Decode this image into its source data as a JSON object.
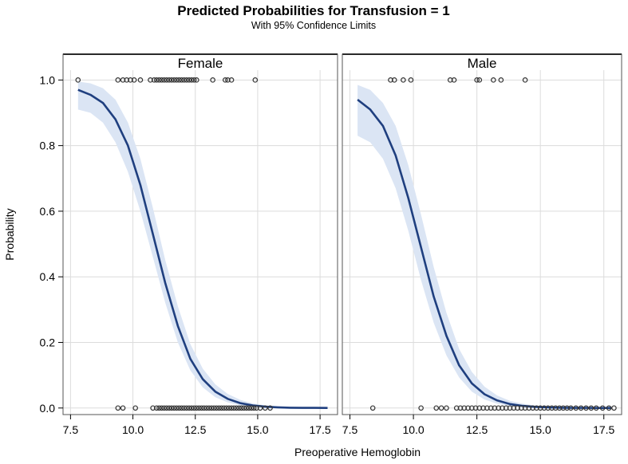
{
  "chart_data": {
    "type": "line",
    "title": "Predicted Probabilities for Transfusion = 1",
    "subtitle": "With 95% Confidence Limits",
    "xlabel": "Preoperative Hemoglobin",
    "ylabel": "Probability",
    "xlim": [
      7.2,
      18.2
    ],
    "ylim": [
      -0.02,
      1.03
    ],
    "xticks": [
      7.5,
      10.0,
      12.5,
      15.0,
      17.5
    ],
    "xtick_labels": [
      "7.5",
      "10.0",
      "12.5",
      "15.0",
      "17.5"
    ],
    "yticks": [
      0.0,
      0.2,
      0.4,
      0.6,
      0.8,
      1.0
    ],
    "ytick_labels": [
      "0.0",
      "0.2",
      "0.4",
      "0.6",
      "0.8",
      "1.0"
    ],
    "grid": true,
    "line_color": "#1f3f7f",
    "band_color": "#dbe5f4",
    "marker_color": "#333333",
    "panels": [
      {
        "label": "Female",
        "curve": {
          "x": [
            7.8,
            8.3,
            8.8,
            9.3,
            9.8,
            10.3,
            10.8,
            11.3,
            11.8,
            12.3,
            12.8,
            13.3,
            13.8,
            14.3,
            14.8,
            15.3,
            15.8,
            16.3,
            16.8,
            17.3,
            17.8
          ],
          "y": [
            0.97,
            0.955,
            0.93,
            0.88,
            0.8,
            0.68,
            0.53,
            0.38,
            0.25,
            0.15,
            0.088,
            0.05,
            0.028,
            0.015,
            0.008,
            0.004,
            0.002,
            0.001,
            0.0005,
            0.0003,
            0.0002
          ],
          "lower": [
            0.91,
            0.9,
            0.87,
            0.81,
            0.72,
            0.6,
            0.46,
            0.32,
            0.2,
            0.115,
            0.063,
            0.033,
            0.017,
            0.008,
            0.004,
            0.002,
            0.001,
            0.0005,
            0.0002,
            0.0001,
            0.0
          ],
          "upper": [
            0.995,
            0.99,
            0.975,
            0.94,
            0.87,
            0.76,
            0.61,
            0.45,
            0.31,
            0.195,
            0.12,
            0.072,
            0.043,
            0.025,
            0.014,
            0.008,
            0.0045,
            0.0025,
            0.0015,
            0.001,
            0.0006
          ]
        },
        "points_y1": [
          7.8,
          9.4,
          9.6,
          9.75,
          9.9,
          10.05,
          10.3,
          10.7,
          10.85,
          10.95,
          11.05,
          11.15,
          11.25,
          11.35,
          11.45,
          11.55,
          11.65,
          11.75,
          11.85,
          11.95,
          12.05,
          12.15,
          12.25,
          12.35,
          12.45,
          12.55,
          13.2,
          13.7,
          13.8,
          13.95,
          14.9
        ],
        "points_y0": [
          9.4,
          9.6,
          10.1,
          10.8,
          10.95,
          11.05,
          11.15,
          11.25,
          11.35,
          11.45,
          11.55,
          11.65,
          11.75,
          11.85,
          11.95,
          12.05,
          12.15,
          12.25,
          12.35,
          12.45,
          12.55,
          12.65,
          12.75,
          12.85,
          12.95,
          13.05,
          13.15,
          13.25,
          13.35,
          13.45,
          13.55,
          13.65,
          13.75,
          13.85,
          13.95,
          14.05,
          14.15,
          14.25,
          14.35,
          14.45,
          14.55,
          14.65,
          14.75,
          14.85,
          14.95,
          15.1,
          15.3,
          15.5
        ]
      },
      {
        "label": "Male",
        "curve": {
          "x": [
            7.8,
            8.3,
            8.8,
            9.3,
            9.8,
            10.3,
            10.8,
            11.3,
            11.8,
            12.3,
            12.8,
            13.3,
            13.8,
            14.3,
            14.8,
            15.3,
            15.8,
            16.3,
            16.8,
            17.3,
            17.8
          ],
          "y": [
            0.94,
            0.91,
            0.86,
            0.77,
            0.64,
            0.49,
            0.34,
            0.22,
            0.13,
            0.075,
            0.042,
            0.023,
            0.012,
            0.0065,
            0.0035,
            0.0018,
            0.001,
            0.0005,
            0.0003,
            0.0002,
            0.0001
          ],
          "lower": [
            0.83,
            0.81,
            0.76,
            0.67,
            0.54,
            0.39,
            0.26,
            0.16,
            0.093,
            0.05,
            0.026,
            0.013,
            0.0065,
            0.0032,
            0.0016,
            0.0008,
            0.0004,
            0.0002,
            0.0001,
            0.0,
            0.0
          ],
          "upper": [
            0.985,
            0.97,
            0.93,
            0.86,
            0.74,
            0.59,
            0.43,
            0.29,
            0.18,
            0.11,
            0.065,
            0.038,
            0.022,
            0.013,
            0.0075,
            0.0045,
            0.0027,
            0.0016,
            0.001,
            0.0006,
            0.0004
          ]
        },
        "points_y1": [
          9.1,
          9.25,
          9.6,
          9.9,
          11.45,
          11.6,
          12.5,
          12.6,
          13.15,
          13.45,
          14.4
        ],
        "points_y0": [
          8.4,
          10.3,
          10.9,
          11.1,
          11.3,
          11.7,
          11.85,
          12.0,
          12.15,
          12.3,
          12.45,
          12.6,
          12.75,
          12.9,
          13.05,
          13.2,
          13.35,
          13.5,
          13.65,
          13.8,
          13.95,
          14.1,
          14.25,
          14.4,
          14.55,
          14.7,
          14.85,
          15.0,
          15.15,
          15.3,
          15.45,
          15.6,
          15.75,
          15.9,
          16.05,
          16.2,
          16.4,
          16.6,
          16.8,
          17.0,
          17.2,
          17.45,
          17.7,
          17.9
        ]
      }
    ]
  }
}
